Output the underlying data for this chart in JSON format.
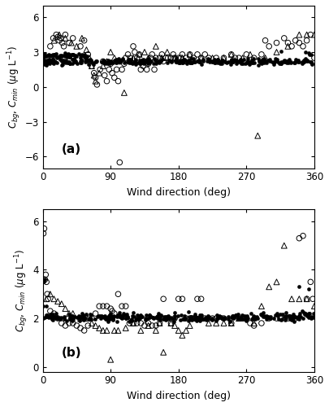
{
  "panel_a": {
    "label": "(a)",
    "ylim": [
      -7,
      7
    ],
    "yticks": [
      -6,
      -3,
      0,
      3,
      6
    ],
    "ylabel": "$C_{bg}$, $C_{min}$ ($\\mu$g L$^{-1}$)",
    "bg_filled_seed": 42,
    "bg_filled_n": 400,
    "bg_filled_mean": 2.2,
    "bg_filled_std": 0.12,
    "bg_filled_cluster_n": 60,
    "bg_filled_cluster_wmax": 60,
    "bg_filled_cluster_mean": 2.7,
    "open_circles_wind": [
      10,
      14,
      18,
      20,
      22,
      24,
      26,
      28,
      30,
      35,
      40,
      50,
      55,
      60,
      62,
      65,
      68,
      70,
      72,
      76,
      80,
      82,
      85,
      88,
      90,
      92,
      95,
      98,
      100,
      102,
      105,
      108,
      110,
      113,
      116,
      120,
      122,
      125,
      128,
      130,
      133,
      135,
      138,
      140,
      143,
      145,
      148,
      150,
      155,
      158,
      160,
      163,
      166,
      170,
      173,
      175,
      178,
      180,
      183,
      185,
      188,
      190,
      195,
      200,
      205,
      210,
      215,
      220,
      230,
      240,
      250,
      255,
      260,
      270,
      280,
      290,
      295,
      300,
      310,
      320,
      325,
      330,
      335,
      340,
      345,
      350,
      355,
      360
    ],
    "open_circles_val": [
      3.5,
      4.2,
      4.5,
      4.3,
      4.0,
      4.2,
      3.8,
      3.5,
      4.5,
      3.8,
      4.2,
      3.5,
      4.0,
      2.8,
      2.2,
      1.8,
      1.2,
      0.8,
      0.2,
      1.5,
      2.2,
      1.0,
      0.5,
      1.5,
      2.0,
      1.2,
      0.8,
      1.5,
      0.5,
      -6.5,
      1.5,
      2.0,
      2.5,
      2.8,
      2.5,
      3.5,
      3.0,
      2.5,
      2.8,
      1.5,
      1.8,
      2.2,
      1.5,
      2.0,
      2.5,
      2.8,
      1.5,
      2.5,
      2.5,
      2.8,
      2.2,
      2.5,
      2.5,
      2.5,
      2.8,
      2.5,
      2.2,
      2.5,
      2.5,
      2.8,
      2.2,
      2.5,
      2.8,
      2.5,
      2.8,
      2.5,
      2.8,
      2.5,
      2.5,
      2.5,
      2.8,
      2.5,
      2.5,
      2.8,
      2.5,
      2.8,
      4.0,
      3.5,
      3.8,
      4.2,
      3.8,
      3.5,
      4.0,
      3.8,
      3.5,
      4.0,
      4.5,
      2.5
    ],
    "open_triangles_wind": [
      15,
      22,
      30,
      38,
      45,
      52,
      58,
      62,
      65,
      68,
      70,
      75,
      80,
      85,
      90,
      95,
      100,
      108,
      120,
      128,
      135,
      140,
      150,
      158,
      165,
      175,
      185,
      195,
      210,
      225,
      240,
      250,
      265,
      275,
      285,
      295,
      310,
      325,
      340,
      350,
      360
    ],
    "open_triangles_val": [
      4.0,
      4.5,
      4.2,
      3.8,
      3.5,
      4.2,
      3.2,
      2.5,
      1.8,
      1.0,
      0.5,
      1.2,
      1.8,
      2.2,
      3.0,
      2.5,
      2.2,
      -0.5,
      2.5,
      2.8,
      3.0,
      2.5,
      3.5,
      2.5,
      3.0,
      2.5,
      2.5,
      2.8,
      2.5,
      2.5,
      2.5,
      2.8,
      2.5,
      2.8,
      -4.2,
      2.5,
      3.0,
      3.5,
      4.5,
      4.5,
      4.5
    ]
  },
  "panel_b": {
    "label": "(b)",
    "ylim": [
      -0.2,
      6.5
    ],
    "yticks": [
      0,
      2,
      4,
      6
    ],
    "ylabel": "$C_{bg}$, $C_{min}$ ($\\mu$g L$^{-1}$)",
    "bg_filled_seed": 77,
    "bg_filled_n": 320,
    "bg_filled_mean": 2.05,
    "bg_filled_std": 0.08,
    "open_circles_wind": [
      1,
      2,
      3,
      4,
      5,
      6,
      7,
      10,
      15,
      20,
      25,
      30,
      35,
      40,
      45,
      50,
      55,
      60,
      65,
      70,
      75,
      80,
      85,
      90,
      92,
      95,
      100,
      105,
      110,
      115,
      120,
      125,
      130,
      135,
      140,
      145,
      150,
      155,
      160,
      165,
      170,
      175,
      180,
      185,
      190,
      195,
      200,
      205,
      210,
      215,
      220,
      225,
      230,
      240,
      250,
      260,
      265,
      270,
      275,
      280,
      290,
      300,
      310,
      315,
      325,
      330,
      335,
      340,
      345,
      350,
      355,
      358
    ],
    "open_circles_val": [
      5.5,
      5.7,
      3.6,
      3.8,
      3.5,
      3.0,
      2.8,
      2.3,
      2.2,
      2.0,
      1.8,
      1.7,
      1.8,
      1.8,
      1.7,
      1.6,
      1.5,
      1.7,
      2.0,
      2.2,
      2.5,
      2.5,
      2.5,
      2.4,
      2.3,
      2.2,
      3.0,
      2.5,
      2.5,
      1.8,
      1.8,
      1.8,
      1.8,
      1.7,
      1.8,
      1.7,
      1.7,
      1.8,
      2.8,
      2.0,
      1.8,
      2.0,
      2.8,
      2.8,
      2.0,
      2.0,
      2.0,
      2.8,
      2.8,
      2.0,
      2.0,
      2.0,
      2.0,
      2.0,
      1.8,
      2.0,
      2.0,
      2.0,
      1.8,
      1.7,
      1.8,
      2.0,
      2.0,
      2.0,
      2.0,
      2.0,
      2.0,
      5.3,
      5.4,
      2.8,
      3.5,
      2.8
    ],
    "open_triangles_wind": [
      5,
      10,
      15,
      20,
      25,
      30,
      35,
      40,
      50,
      60,
      65,
      70,
      75,
      80,
      85,
      90,
      95,
      100,
      110,
      120,
      130,
      140,
      150,
      155,
      160,
      170,
      175,
      180,
      185,
      190,
      195,
      200,
      210,
      220,
      230,
      240,
      250,
      260,
      280,
      290,
      300,
      310,
      320,
      330,
      340,
      350,
      360
    ],
    "open_triangles_val": [
      2.8,
      3.0,
      2.8,
      2.7,
      2.6,
      2.4,
      2.2,
      2.2,
      2.0,
      2.0,
      1.8,
      1.7,
      1.6,
      1.5,
      1.5,
      0.3,
      1.5,
      1.5,
      1.6,
      1.8,
      1.5,
      1.7,
      1.5,
      1.8,
      0.6,
      1.8,
      1.7,
      1.5,
      1.3,
      1.5,
      1.7,
      2.0,
      2.0,
      1.8,
      1.8,
      1.8,
      1.8,
      2.0,
      1.8,
      2.5,
      3.3,
      3.5,
      5.0,
      2.8,
      2.8,
      2.8,
      2.5
    ]
  },
  "xlabel": "Wind direction (deg)",
  "xticks": [
    0,
    90,
    180,
    270,
    360
  ],
  "xlim": [
    0,
    360
  ],
  "bg_color": "#ffffff"
}
